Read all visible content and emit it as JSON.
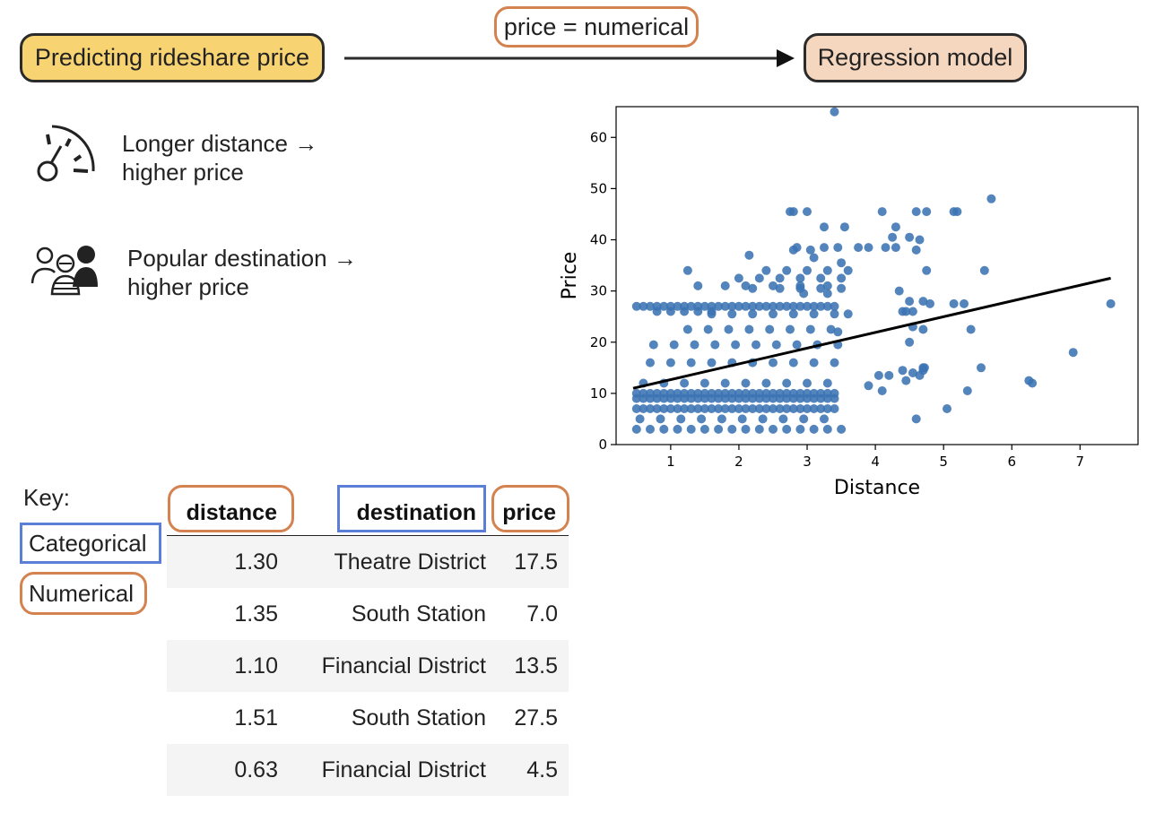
{
  "header": {
    "task_label": "Predicting rideshare price",
    "type_label": "price = numerical",
    "model_label": "Regression model"
  },
  "features": [
    {
      "icon": "speedometer-icon",
      "line1": "Longer distance →",
      "line2": "higher price"
    },
    {
      "icon": "people-icon",
      "line1": "Popular destination →",
      "line2": "higher price"
    }
  ],
  "key": {
    "title": "Key:",
    "categorical": "Categorical",
    "numerical": "Numerical",
    "categorical_color": "#5b7fd6",
    "numerical_color": "#d4824f"
  },
  "table": {
    "columns": [
      "distance",
      "destination",
      "price"
    ],
    "rows": [
      [
        "1.30",
        "Theatre District",
        "17.5"
      ],
      [
        "1.35",
        "South Station",
        "7.0"
      ],
      [
        "1.10",
        "Financial District",
        "13.5"
      ],
      [
        "1.51",
        "South Station",
        "27.5"
      ],
      [
        "0.63",
        "Financial District",
        "4.5"
      ]
    ]
  },
  "chart_data": {
    "type": "scatter",
    "xlabel": "Distance",
    "ylabel": "Price",
    "xlim": [
      0.2,
      7.85
    ],
    "ylim": [
      0,
      66
    ],
    "xticks": [
      1,
      2,
      3,
      4,
      5,
      6,
      7
    ],
    "yticks": [
      0,
      10,
      20,
      30,
      40,
      50,
      60
    ],
    "point_color": "#3b73b3",
    "line_color": "#000000",
    "fit_line": {
      "x": [
        0.45,
        7.45
      ],
      "y": [
        11.0,
        32.5
      ]
    },
    "points": {
      "x": [
        0.5,
        0.6,
        0.7,
        0.8,
        0.9,
        1.0,
        1.1,
        1.2,
        1.3,
        1.4,
        1.5,
        1.6,
        1.7,
        1.8,
        1.9,
        2.0,
        2.1,
        2.2,
        2.3,
        2.4,
        2.5,
        2.6,
        2.7,
        2.8,
        2.9,
        3.0,
        3.1,
        3.2,
        3.3,
        3.4,
        0.5,
        0.6,
        0.7,
        0.8,
        0.9,
        1.0,
        1.1,
        1.2,
        1.3,
        1.4,
        1.5,
        1.6,
        1.7,
        1.8,
        1.9,
        2.0,
        2.1,
        2.2,
        2.3,
        2.4,
        2.5,
        2.6,
        2.7,
        2.8,
        2.9,
        3.0,
        3.1,
        3.2,
        3.3,
        3.4,
        0.5,
        0.6,
        0.7,
        0.8,
        0.9,
        1.0,
        1.1,
        1.2,
        1.3,
        1.4,
        1.5,
        1.6,
        1.7,
        1.8,
        1.9,
        2.0,
        2.1,
        2.2,
        2.3,
        2.4,
        2.5,
        2.6,
        2.7,
        2.8,
        2.9,
        3.0,
        3.1,
        3.2,
        3.3,
        3.4,
        0.5,
        0.6,
        0.7,
        0.8,
        0.9,
        1.0,
        1.1,
        1.2,
        1.3,
        1.4,
        1.5,
        1.6,
        1.7,
        1.8,
        1.9,
        2.0,
        2.1,
        2.2,
        2.3,
        2.4,
        2.5,
        2.6,
        2.7,
        2.8,
        2.9,
        3.0,
        3.1,
        3.2,
        3.3,
        3.4,
        0.55,
        0.85,
        1.15,
        1.45,
        1.75,
        2.05,
        2.35,
        2.65,
        2.95,
        3.25,
        0.6,
        0.9,
        1.2,
        1.5,
        1.8,
        2.1,
        2.4,
        2.7,
        3.0,
        3.3,
        0.7,
        1.0,
        1.3,
        1.6,
        1.9,
        2.2,
        2.5,
        2.8,
        3.1,
        3.4,
        0.75,
        1.05,
        1.35,
        1.65,
        1.95,
        2.25,
        2.55,
        2.85,
        3.15,
        3.45,
        0.8,
        1.0,
        1.2,
        1.4,
        1.6,
        0.5,
        0.7,
        0.9,
        1.1,
        1.3,
        1.5,
        1.7,
        1.9,
        2.1,
        2.3,
        2.5,
        2.7,
        2.9,
        3.1,
        3.3,
        3.5,
        1.25,
        1.55,
        1.85,
        2.15,
        2.45,
        2.75,
        3.05,
        3.35,
        1.6,
        1.9,
        2.2,
        2.5,
        2.8,
        3.1,
        3.4,
        3.6,
        2.0,
        2.3,
        2.6,
        2.9,
        3.2,
        3.5,
        2.4,
        2.7,
        3.0,
        3.3,
        3.6,
        2.2,
        2.6,
        2.9,
        3.2,
        3.5,
        1.4,
        1.8,
        2.1,
        2.5,
        2.9,
        3.3,
        1.25,
        2.15,
        2.85,
        3.45,
        2.75,
        3.0,
        3.25,
        3.55,
        3.05,
        2.8,
        3.4,
        2.8,
        3.25,
        3.1,
        3.3,
        3.5,
        2.95,
        3.45,
        3.75,
        3.9,
        4.1,
        4.15,
        4.3,
        4.35,
        4.4,
        4.45,
        4.5,
        4.55,
        4.6,
        4.7,
        4.75,
        4.25,
        4.3,
        4.5,
        4.6,
        4.65,
        4.75,
        4.8,
        4.5,
        4.7,
        4.2,
        4.4,
        4.55,
        4.65,
        4.7,
        3.9,
        4.05,
        4.1,
        4.45,
        4.55,
        4.6,
        4.7,
        4.72,
        5.05,
        5.15,
        5.2,
        5.3,
        5.4,
        5.55,
        5.6,
        5.7,
        5.35,
        5.15,
        6.25,
        6.3,
        6.9,
        7.45
      ],
      "y": [
        7,
        7,
        7,
        7,
        7,
        7,
        7,
        7,
        7,
        7,
        7,
        7,
        7,
        7,
        7,
        7,
        7,
        7,
        7,
        7,
        7,
        7,
        7,
        7,
        7,
        7,
        7,
        7,
        7,
        7,
        10,
        10,
        10,
        10,
        10,
        10,
        10,
        10,
        10,
        10,
        10,
        10,
        10,
        10,
        10,
        10,
        10,
        10,
        10,
        10,
        10,
        10,
        10,
        10,
        10,
        10,
        10,
        10,
        10,
        10,
        9,
        9,
        9,
        9,
        9,
        9,
        9,
        9,
        9,
        9,
        9,
        9,
        9,
        9,
        9,
        9,
        9,
        9,
        9,
        9,
        9,
        9,
        9,
        9,
        9,
        9,
        9,
        9,
        9,
        9,
        27,
        27,
        27,
        27,
        27,
        27,
        27,
        27,
        27,
        27,
        27,
        27,
        27,
        27,
        27,
        27,
        27,
        27,
        27,
        27,
        27,
        27,
        27,
        27,
        27,
        27,
        27,
        27,
        27,
        27,
        5,
        5,
        5,
        5,
        5,
        5,
        5,
        5,
        5,
        5,
        12,
        12,
        12,
        12,
        12,
        12,
        12,
        12,
        12,
        12,
        16,
        16,
        16,
        16,
        16,
        16,
        16,
        16,
        16,
        16,
        19.5,
        19.5,
        19.5,
        19.5,
        19.5,
        19.5,
        19.5,
        19.5,
        19.5,
        19.5,
        26,
        26,
        26,
        26,
        26,
        3,
        3,
        3,
        3,
        3,
        3,
        3,
        3,
        3,
        3,
        3,
        3,
        3,
        3,
        3,
        3,
        22.5,
        22.5,
        22.5,
        22.5,
        22.5,
        22.5,
        22.5,
        22.5,
        25.5,
        25.5,
        25.5,
        25.5,
        25.5,
        25.5,
        25.5,
        25.5,
        32.5,
        32.5,
        32.5,
        32.5,
        32.5,
        32.5,
        34,
        34,
        34,
        34,
        34,
        30.5,
        30.5,
        30.5,
        30.5,
        30.5,
        31,
        31,
        31,
        31,
        31,
        31,
        34,
        37,
        38.5,
        38.5,
        45.5,
        45.5,
        42.5,
        42.5,
        38,
        38,
        65,
        45.5,
        38.5,
        36.5,
        29.5,
        35.5,
        29.5,
        22,
        38.5,
        38.5,
        45.5,
        38.5,
        42.5,
        30,
        26,
        26,
        28,
        26,
        45.5,
        28,
        45.5,
        40.5,
        38.5,
        40.5,
        38,
        40,
        34,
        27.5,
        20,
        22.5,
        13.5,
        14.5,
        14,
        13.5,
        15,
        11.5,
        13.5,
        10.5,
        12.5,
        23,
        5,
        14.5,
        15,
        7,
        45.5,
        45.5,
        27.5,
        22.5,
        15,
        34,
        48,
        10.5,
        27.5,
        12.5,
        12,
        18,
        27.5
      ]
    }
  }
}
